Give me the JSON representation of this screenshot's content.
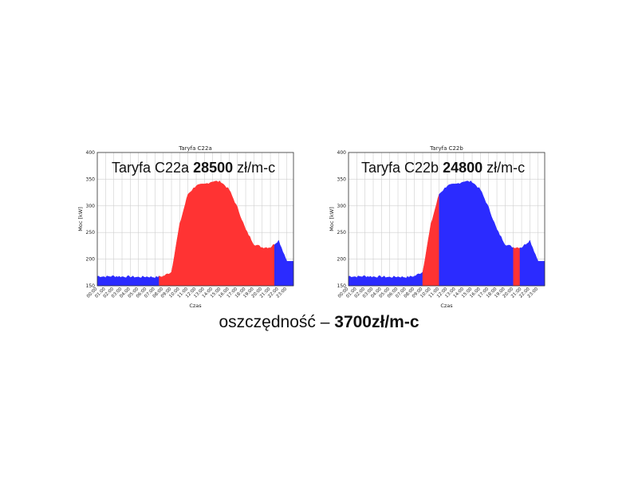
{
  "savings": {
    "label": "oszczędność",
    "sep": "–",
    "amount": "3700zł/m-c"
  },
  "chart_data": [
    {
      "type": "area",
      "title": "Taryfa C22a",
      "overlay": {
        "prefix": "Taryfa C22a",
        "amount": "28500",
        "unit": "zł/m-c"
      },
      "xlabel": "Czas",
      "ylabel": "Moc [kW]",
      "ylim": [
        150,
        400
      ],
      "yticks": [
        150,
        200,
        250,
        300,
        350,
        400
      ],
      "grid": true,
      "x": [
        "00:00",
        "01:00",
        "02:00",
        "03:00",
        "04:00",
        "05:00",
        "06:00",
        "07:00",
        "08:00",
        "09:00",
        "10:00",
        "11:00",
        "12:00",
        "13:00",
        "14:00",
        "15:00",
        "16:00",
        "17:00",
        "18:00",
        "19:00",
        "20:00",
        "21:00",
        "22:00",
        "23:00"
      ],
      "values": [
        168,
        167,
        168,
        167,
        167,
        166,
        167,
        166,
        168,
        176,
        265,
        322,
        338,
        340,
        346,
        345,
        330,
        296,
        255,
        228,
        222,
        222,
        235,
        196
      ],
      "zones": [
        {
          "from": 0,
          "to": 7.5,
          "color": "#2b2bff"
        },
        {
          "from": 7.5,
          "to": 21.5,
          "color": "#ff3333"
        },
        {
          "from": 21.5,
          "to": 23.8,
          "color": "#2b2bff"
        }
      ]
    },
    {
      "type": "area",
      "title": "Taryfa C22b",
      "overlay": {
        "prefix": "Taryfa C22b",
        "amount": "24800",
        "unit": "zł/m-c"
      },
      "xlabel": "Czas",
      "ylabel": "Moc [kW]",
      "ylim": [
        150,
        400
      ],
      "yticks": [
        150,
        200,
        250,
        300,
        350,
        400
      ],
      "grid": true,
      "x": [
        "00:00",
        "01:00",
        "02:00",
        "03:00",
        "04:00",
        "05:00",
        "06:00",
        "07:00",
        "08:00",
        "09:00",
        "10:00",
        "11:00",
        "12:00",
        "13:00",
        "14:00",
        "15:00",
        "16:00",
        "17:00",
        "18:00",
        "19:00",
        "20:00",
        "21:00",
        "22:00",
        "23:00"
      ],
      "values": [
        168,
        167,
        168,
        167,
        167,
        166,
        167,
        166,
        168,
        176,
        265,
        322,
        338,
        340,
        346,
        345,
        330,
        296,
        255,
        228,
        222,
        222,
        235,
        196
      ],
      "zones": [
        {
          "from": 0,
          "to": 9,
          "color": "#2b2bff"
        },
        {
          "from": 9,
          "to": 11,
          "color": "#ff3333"
        },
        {
          "from": 11,
          "to": 20,
          "color": "#2b2bff"
        },
        {
          "from": 20,
          "to": 20.8,
          "color": "#ff3333"
        },
        {
          "from": 20.8,
          "to": 23.8,
          "color": "#2b2bff"
        }
      ]
    }
  ]
}
